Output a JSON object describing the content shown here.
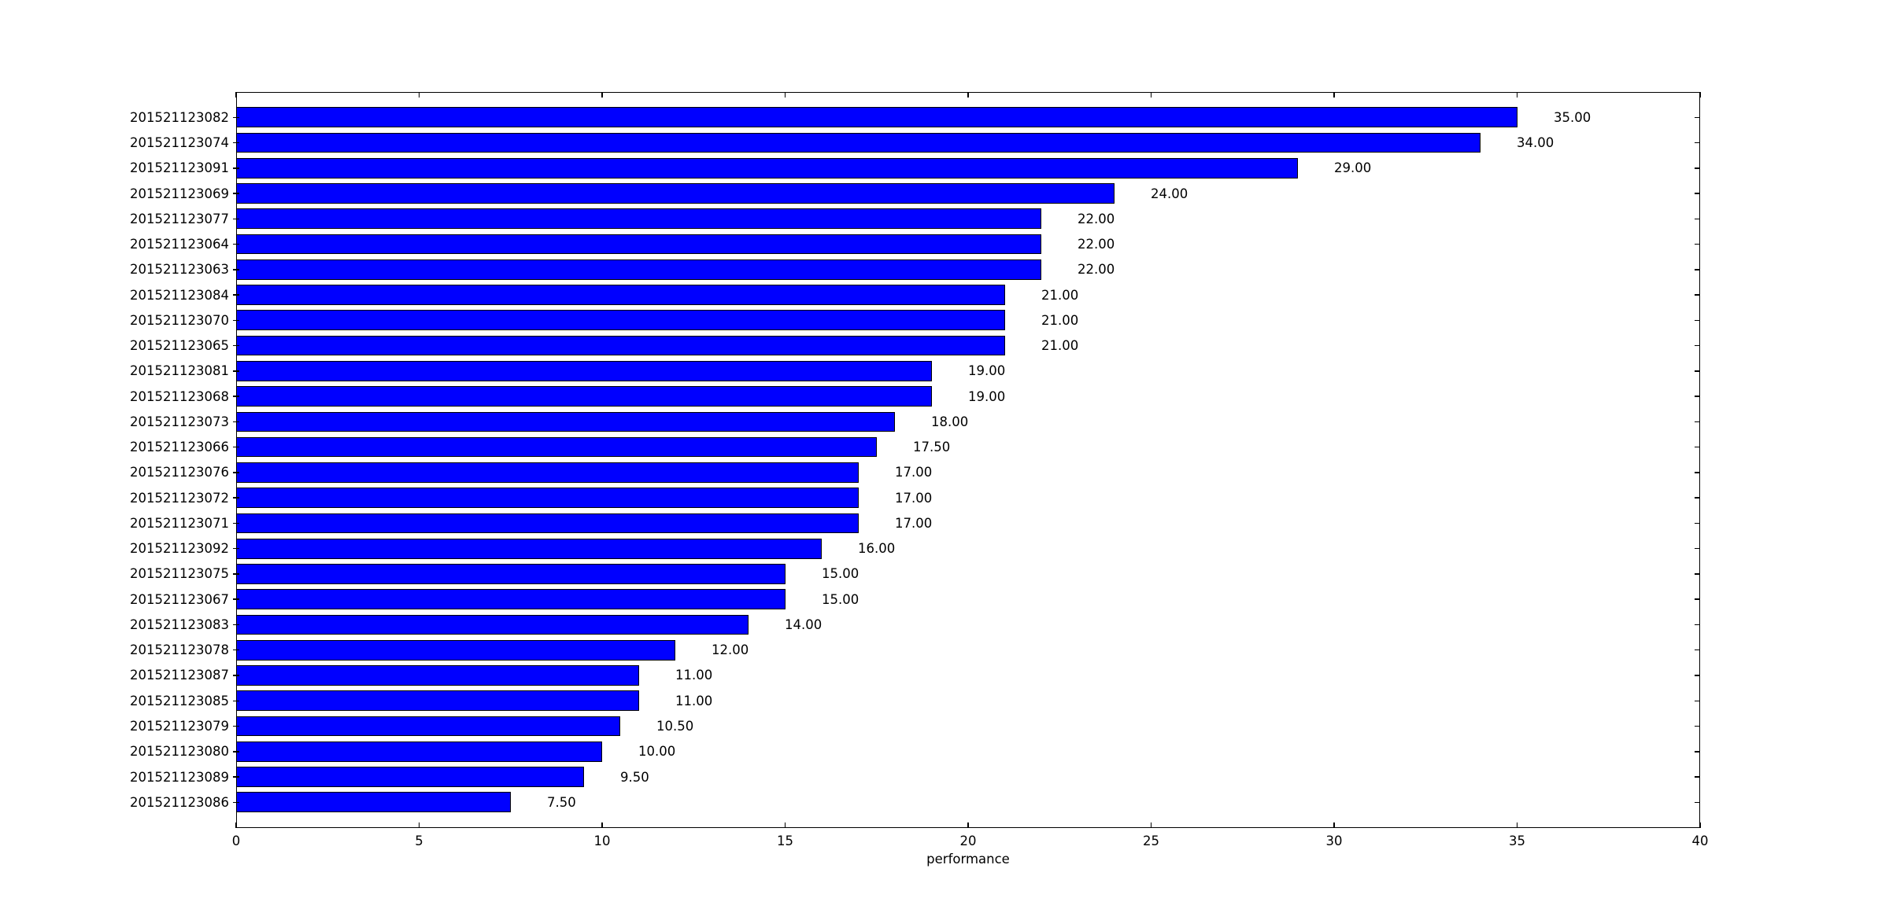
{
  "figure": {
    "background": "#ffffff",
    "text_color": "#000000"
  },
  "chart_data": {
    "type": "bar",
    "orientation": "horizontal",
    "title": "",
    "xlabel": "performance",
    "ylabel": "",
    "xlim": [
      0,
      40
    ],
    "xticks": [
      0,
      5,
      10,
      15,
      20,
      25,
      30,
      35,
      40
    ],
    "grid": false,
    "legend_position": "none",
    "bar_color": "#0000ff",
    "bar_edge_color": "#000000",
    "categories": [
      "201521123082",
      "201521123074",
      "201521123091",
      "201521123069",
      "201521123077",
      "201521123064",
      "201521123063",
      "201521123084",
      "201521123070",
      "201521123065",
      "201521123081",
      "201521123068",
      "201521123073",
      "201521123066",
      "201521123076",
      "201521123072",
      "201521123071",
      "201521123092",
      "201521123075",
      "201521123067",
      "201521123083",
      "201521123078",
      "201521123087",
      "201521123085",
      "201521123079",
      "201521123080",
      "201521123089",
      "201521123086"
    ],
    "values": [
      35,
      34,
      29,
      24,
      22,
      22,
      22,
      21,
      21,
      21,
      19,
      19,
      18,
      17.5,
      17,
      17,
      17,
      16,
      15,
      15,
      14,
      12,
      11,
      11,
      10.5,
      10,
      9.5,
      7.5
    ],
    "value_labels": [
      "35.00",
      "34.00",
      "29.00",
      "24.00",
      "22.00",
      "22.00",
      "22.00",
      "21.00",
      "21.00",
      "21.00",
      "19.00",
      "19.00",
      "18.00",
      "17.50",
      "17.00",
      "17.00",
      "17.00",
      "16.00",
      "15.00",
      "15.00",
      "14.00",
      "12.00",
      "11.00",
      "11.00",
      "10.50",
      "10.00",
      "9.50",
      "7.50"
    ]
  }
}
